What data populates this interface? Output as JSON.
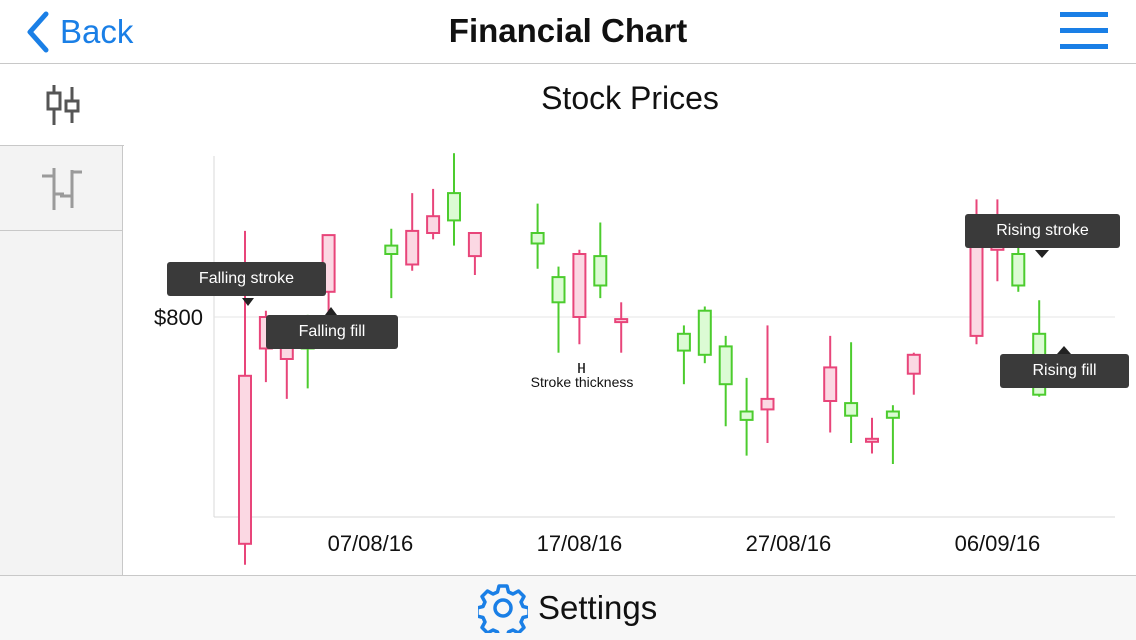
{
  "navbar": {
    "back_label": "Back",
    "title": "Financial Chart"
  },
  "bottom": {
    "settings_label": "Settings"
  },
  "colors": {
    "accent": "#1a7fe6",
    "rising_stroke": "#4ccc2e",
    "rising_fill": "#dcfbd4",
    "falling_stroke": "#e8457a",
    "falling_fill": "#fbd8e3"
  },
  "annotations": {
    "falling_stroke": "Falling stroke",
    "falling_fill": "Falling fill",
    "rising_stroke": "Rising stroke",
    "rising_fill": "Rising fill",
    "stroke_thickness": "Stroke thickness"
  },
  "chart_data": {
    "type": "candlestick",
    "title": "Stock Prices",
    "y_tick_labels": [
      {
        "value": 800,
        "label": "$800"
      }
    ],
    "x_tick_labels": [
      {
        "date": "2016-08-07",
        "label": "07/08/16"
      },
      {
        "date": "2016-08-17",
        "label": "17/08/16"
      },
      {
        "date": "2016-08-27",
        "label": "27/08/16"
      },
      {
        "date": "2016-09-06",
        "label": "06/09/16"
      }
    ],
    "grid": "horizontal",
    "candles": [
      {
        "date": "2016-08-01",
        "open": 772,
        "close": 692,
        "high": 841,
        "low": 682
      },
      {
        "date": "2016-08-02",
        "open": 800,
        "close": 785,
        "high": 803,
        "low": 769
      },
      {
        "date": "2016-08-03",
        "open": 794,
        "close": 780,
        "high": 796,
        "low": 761
      },
      {
        "date": "2016-08-04",
        "open": 785,
        "close": 793,
        "high": 801,
        "low": 766
      },
      {
        "date": "2016-08-05",
        "open": 839,
        "close": 812,
        "high": 839,
        "low": 800
      },
      {
        "date": "2016-08-08",
        "open": 830,
        "close": 834,
        "high": 842,
        "low": 809
      },
      {
        "date": "2016-08-09",
        "open": 841,
        "close": 825,
        "high": 859,
        "low": 822
      },
      {
        "date": "2016-08-10",
        "open": 848,
        "close": 840,
        "high": 861,
        "low": 837
      },
      {
        "date": "2016-08-11",
        "open": 846,
        "close": 859,
        "high": 878,
        "low": 834
      },
      {
        "date": "2016-08-12",
        "open": 840,
        "close": 829,
        "high": 840,
        "low": 820
      },
      {
        "date": "2016-08-15",
        "open": 835,
        "close": 840,
        "high": 854,
        "low": 823
      },
      {
        "date": "2016-08-16",
        "open": 807,
        "close": 819,
        "high": 824,
        "low": 783
      },
      {
        "date": "2016-08-17",
        "open": 830,
        "close": 800,
        "high": 832,
        "low": 787
      },
      {
        "date": "2016-08-18",
        "open": 815,
        "close": 829,
        "high": 845,
        "low": 809
      },
      {
        "date": "2016-08-19",
        "open": 799,
        "close": 798,
        "high": 807,
        "low": 783
      },
      {
        "date": "2016-08-22",
        "open": 784,
        "close": 792,
        "high": 796,
        "low": 768
      },
      {
        "date": "2016-08-23",
        "open": 782,
        "close": 803,
        "high": 805,
        "low": 778
      },
      {
        "date": "2016-08-24",
        "open": 768,
        "close": 786,
        "high": 791,
        "low": 748
      },
      {
        "date": "2016-08-25",
        "open": 751,
        "close": 755,
        "high": 771,
        "low": 734
      },
      {
        "date": "2016-08-26",
        "open": 761,
        "close": 756,
        "high": 796,
        "low": 740
      },
      {
        "date": "2016-08-29",
        "open": 776,
        "close": 760,
        "high": 791,
        "low": 745
      },
      {
        "date": "2016-08-30",
        "open": 753,
        "close": 759,
        "high": 788,
        "low": 740
      },
      {
        "date": "2016-08-31",
        "open": 742,
        "close": 741,
        "high": 752,
        "low": 735
      },
      {
        "date": "2016-09-01",
        "open": 752,
        "close": 755,
        "high": 758,
        "low": 730
      },
      {
        "date": "2016-09-02",
        "open": 782,
        "close": 773,
        "high": 783,
        "low": 763
      },
      {
        "date": "2016-09-05",
        "open": 838,
        "close": 791,
        "high": 856,
        "low": 787
      },
      {
        "date": "2016-09-06",
        "open": 835,
        "close": 832,
        "high": 856,
        "low": 817
      },
      {
        "date": "2016-09-07",
        "open": 815,
        "close": 830,
        "high": 838,
        "low": 812
      },
      {
        "date": "2016-09-08",
        "open": 763,
        "close": 792,
        "high": 808,
        "low": 762
      }
    ]
  }
}
